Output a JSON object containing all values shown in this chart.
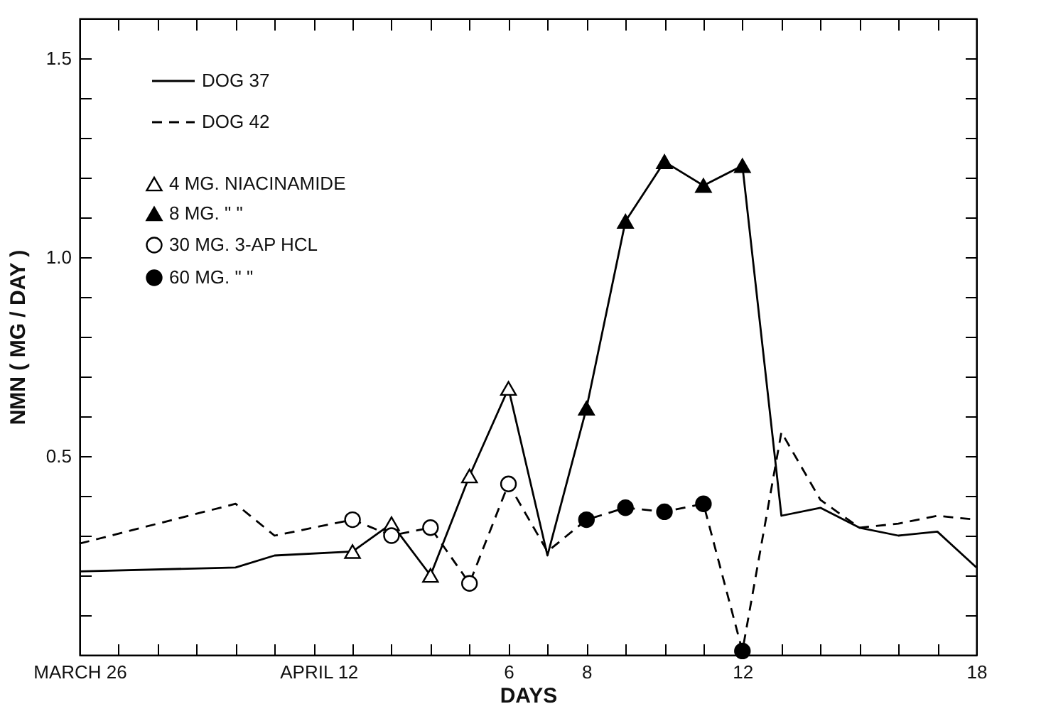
{
  "chart_data": {
    "type": "line",
    "xlabel": "DAYS",
    "ylabel": "NMN ( MG / DAY )",
    "x": [
      "--03-26",
      "--03-30",
      "--03-31",
      "--04-02",
      "--04-03",
      "--04-04",
      "--04-05",
      "--04-06",
      "--04-07",
      "--04-08",
      "--04-09",
      "--04-10",
      "--04-11",
      "--04-12",
      "--04-13",
      "--04-14",
      "--04-15",
      "--04-16",
      "--04-17",
      "--04-18"
    ],
    "series": [
      {
        "name": "DOG 37",
        "color": "#000000",
        "line_style": "solid",
        "values": [
          0.21,
          0.22,
          0.25,
          0.26,
          0.33,
          0.2,
          0.45,
          0.67,
          0.25,
          0.62,
          1.09,
          1.24,
          1.18,
          1.23,
          0.35,
          0.37,
          0.32,
          0.3,
          0.31,
          0.22
        ]
      },
      {
        "name": "DOG 42",
        "color": "#000000",
        "line_style": "dashed",
        "values": [
          0.28,
          0.38,
          0.3,
          0.34,
          0.3,
          0.32,
          0.18,
          0.43,
          0.26,
          0.34,
          0.37,
          0.36,
          0.38,
          0.01,
          0.56,
          0.39,
          0.32,
          0.33,
          0.35,
          0.34
        ]
      },
      {
        "name": "4 MG. NIACINAMIDE",
        "type": "scatter",
        "marker": "triangle",
        "color": "#ffffff",
        "x": [
          "--04-02",
          "--04-03",
          "--04-04",
          "--04-05",
          "--04-06"
        ],
        "values": [
          0.26,
          0.33,
          0.2,
          0.45,
          0.67
        ]
      },
      {
        "name": "8 MG.    \"        \"",
        "type": "scatter",
        "marker": "triangle",
        "color": "#000000",
        "x": [
          "--04-08",
          "--04-09",
          "--04-10",
          "--04-11",
          "--04-12"
        ],
        "values": [
          0.62,
          1.09,
          1.24,
          1.18,
          1.23
        ]
      },
      {
        "name": "30 MG. 3-AP HCL",
        "type": "scatter",
        "marker": "circle",
        "color": "#ffffff",
        "x": [
          "--04-02",
          "--04-03",
          "--04-04",
          "--04-05",
          "--04-06"
        ],
        "values": [
          0.34,
          0.3,
          0.32,
          0.18,
          0.43
        ]
      },
      {
        "name": "60 MG.    \"        \"",
        "type": "scatter",
        "marker": "circle",
        "color": "#000000",
        "x": [
          "--04-08",
          "--04-09",
          "--04-10",
          "--04-11",
          "--04-12"
        ],
        "values": [
          0.34,
          0.37,
          0.36,
          0.38,
          0.01
        ]
      }
    ],
    "xlim": [
      "--03-26",
      "--04-18"
    ],
    "xticks": [
      {
        "value": "--03-26",
        "label": "MARCH 26"
      },
      {
        "value": "--03-27",
        "label": null
      },
      {
        "value": "--03-28",
        "label": null
      },
      {
        "value": "--03-29",
        "label": null
      },
      {
        "value": "--03-30",
        "label": null
      },
      {
        "value": "--03-31",
        "label": null
      },
      {
        "value": "--04-01",
        "label": "APRIL 1"
      },
      {
        "value": "--04-02",
        "label": "2"
      },
      {
        "value": "--04-03",
        "label": null
      },
      {
        "value": "--04-04",
        "label": null
      },
      {
        "value": "--04-05",
        "label": null
      },
      {
        "value": "--04-06",
        "label": "6"
      },
      {
        "value": "--04-07",
        "label": null
      },
      {
        "value": "--04-08",
        "label": "8"
      },
      {
        "value": "--04-09",
        "label": null
      },
      {
        "value": "--04-10",
        "label": null
      },
      {
        "value": "--04-11",
        "label": null
      },
      {
        "value": "--04-12",
        "label": "12"
      },
      {
        "value": "--04-13",
        "label": null
      },
      {
        "value": "--04-14",
        "label": null
      },
      {
        "value": "--04-15",
        "label": null
      },
      {
        "value": "--04-16",
        "label": null
      },
      {
        "value": "--04-17",
        "label": null
      },
      {
        "value": "--04-18",
        "label": "18"
      }
    ],
    "ylim": [
      0,
      1.6
    ],
    "yticks": [
      {
        "value": 0.1,
        "label": null
      },
      {
        "value": 0.2,
        "label": null
      },
      {
        "value": 0.3,
        "label": null
      },
      {
        "value": 0.4,
        "label": null
      },
      {
        "value": 0.5,
        "label": "0.5"
      },
      {
        "value": 0.6,
        "label": null
      },
      {
        "value": 0.7,
        "label": null
      },
      {
        "value": 0.8,
        "label": null
      },
      {
        "value": 0.9,
        "label": null
      },
      {
        "value": 1.0,
        "label": "1.0"
      },
      {
        "value": 1.1,
        "label": null
      },
      {
        "value": 1.2,
        "label": null
      },
      {
        "value": 1.3,
        "label": null
      },
      {
        "value": 1.4,
        "label": null
      },
      {
        "value": 1.5,
        "label": "1.5"
      }
    ],
    "legend": "top left",
    "grid": false
  }
}
